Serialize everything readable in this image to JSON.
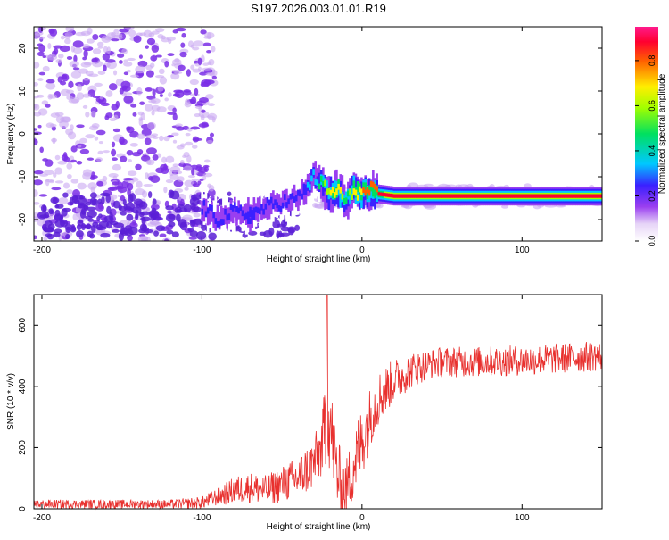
{
  "title": "S197.2026.003.01.01.R19",
  "colors": {
    "snr_line": "#e8302e",
    "speckle": "#7a2ee6",
    "speckle_light": "#c9a8f2",
    "axis": "#000000"
  },
  "chart_data": [
    {
      "type": "heatmap",
      "xlabel": "Height of straight line (km)",
      "ylabel": "Frequency (Hz)",
      "xlim": [
        -205,
        150
      ],
      "ylim": [
        -25,
        25
      ],
      "x_ticks": [
        -200,
        -100,
        0,
        100
      ],
      "y_ticks": [
        -20,
        -10,
        0,
        10,
        20
      ],
      "colorbar": {
        "label": "Normalized spectral amplitude",
        "range": [
          0.0,
          0.95
        ],
        "ticks": [
          "0.0",
          "0.2",
          "0.4",
          "0.6",
          "0.8"
        ],
        "colormap": "rainbow (white → violet → blue → cyan → green → yellow → red → magenta)"
      },
      "ridge": {
        "description": "high-amplitude narrow band",
        "x": [
          -100,
          -90,
          -80,
          -70,
          -60,
          -50,
          -40,
          -30,
          -20,
          -15,
          -10,
          -5,
          0,
          5,
          10,
          20,
          50,
          100,
          150
        ],
        "frequency": [
          -17,
          -20,
          -18,
          -19,
          -17,
          -16,
          -15,
          -10,
          -14,
          -13,
          -16,
          -13,
          -14,
          -13,
          -14,
          -14.5,
          -14.5,
          -14.5,
          -14.5
        ],
        "amplitude": [
          0.3,
          0.3,
          0.25,
          0.35,
          0.3,
          0.25,
          0.3,
          0.4,
          0.7,
          0.8,
          0.5,
          0.75,
          0.8,
          0.85,
          0.9,
          0.95,
          0.95,
          0.95,
          0.95
        ]
      },
      "noise_region": {
        "x_range": [
          -205,
          -100
        ],
        "frequency_range": [
          -25,
          25
        ]
      }
    },
    {
      "type": "line",
      "xlabel": "Height of straight line (km)",
      "ylabel": "SNR (10 * v/v)",
      "xlim": [
        -205,
        150
      ],
      "ylim": [
        0,
        700
      ],
      "x_ticks": [
        -200,
        -100,
        0,
        100
      ],
      "y_ticks": [
        0,
        200,
        400,
        600
      ],
      "envelope": {
        "x": [
          -205,
          -150,
          -120,
          -100,
          -90,
          -80,
          -70,
          -60,
          -50,
          -40,
          -30,
          -25,
          -22,
          -20,
          -15,
          -10,
          -5,
          0,
          5,
          10,
          20,
          30,
          40,
          50,
          70,
          100,
          120,
          150
        ],
        "mean": [
          15,
          15,
          15,
          20,
          40,
          60,
          70,
          60,
          80,
          100,
          150,
          200,
          300,
          280,
          100,
          60,
          150,
          220,
          300,
          360,
          420,
          450,
          470,
          480,
          480,
          485,
          490,
          500
        ],
        "spread": [
          15,
          15,
          15,
          20,
          30,
          45,
          50,
          50,
          60,
          70,
          90,
          100,
          200,
          150,
          120,
          100,
          120,
          120,
          100,
          90,
          70,
          60,
          50,
          50,
          50,
          50,
          50,
          50
        ]
      },
      "peak": {
        "x": -22,
        "y": 700
      }
    }
  ]
}
